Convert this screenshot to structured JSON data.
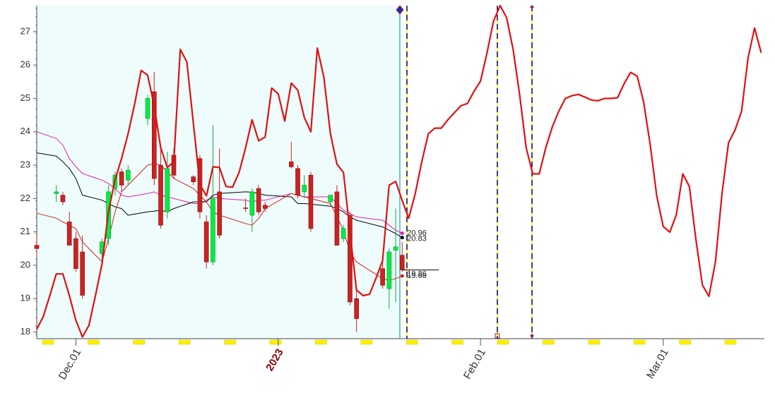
{
  "chart_data": {
    "type": "candlestick",
    "x": [
      -6,
      -3,
      -2,
      -1,
      0,
      1,
      4,
      5,
      6,
      7,
      8,
      11,
      12,
      13,
      14,
      15,
      18,
      19,
      20,
      21,
      22,
      26,
      27,
      28,
      29,
      33,
      34,
      35,
      36,
      39,
      40,
      41,
      42,
      43,
      47,
      48,
      49,
      50
    ],
    "open": [
      20.6,
      22.15,
      22.1,
      21.3,
      20.8,
      20.4,
      20.35,
      20.8,
      22.3,
      22.8,
      22.55,
      24.4,
      25.2,
      23.0,
      21.6,
      23.3,
      22.65,
      23.2,
      21.3,
      20.1,
      22.2,
      21.72,
      21.5,
      22.3,
      21.8,
      23.1,
      22.9,
      22.2,
      22.7,
      21.9,
      22.2,
      20.8,
      21.5,
      19.0,
      19.9,
      19.3,
      20.45,
      20.3
    ],
    "high": [
      20.9,
      22.4,
      22.2,
      21.6,
      21.0,
      20.9,
      20.8,
      22.4,
      22.8,
      22.9,
      23.0,
      25.1,
      25.8,
      23.6,
      23.4,
      23.5,
      22.7,
      23.3,
      21.5,
      24.2,
      23.5,
      22.0,
      22.3,
      22.4,
      21.9,
      23.7,
      23.0,
      22.7,
      22.8,
      22.1,
      22.4,
      21.2,
      21.6,
      19.3,
      20.1,
      20.5,
      21.7,
      20.7
    ],
    "low": [
      20.3,
      21.9,
      21.8,
      20.6,
      19.8,
      19.0,
      20.1,
      20.6,
      22.1,
      22.2,
      22.4,
      24.2,
      22.4,
      21.1,
      21.4,
      22.6,
      22.4,
      21.4,
      19.9,
      20.0,
      20.8,
      21.6,
      21.0,
      21.5,
      21.6,
      22.9,
      22.0,
      22.0,
      21.0,
      21.8,
      20.6,
      20.7,
      18.8,
      18.0,
      19.3,
      18.7,
      18.9,
      19.8
    ],
    "close": [
      20.5,
      22.2,
      21.9,
      20.6,
      19.9,
      19.1,
      20.7,
      22.2,
      22.7,
      22.4,
      22.85,
      25.0,
      22.6,
      21.2,
      22.9,
      22.7,
      22.5,
      21.6,
      20.1,
      22.0,
      20.9,
      21.7,
      22.2,
      21.6,
      21.7,
      22.95,
      22.1,
      22.4,
      21.1,
      22.1,
      20.6,
      21.1,
      18.9,
      18.4,
      19.4,
      20.4,
      20.55,
      19.86
    ],
    "up_color": "#00ee44",
    "down_color": "#cc2222",
    "series": [
      {
        "color": "#e020b0",
        "values": [
          24.0,
          23.8,
          23.6,
          23.2,
          22.95,
          22.75,
          22.55,
          22.45,
          22.3,
          22.1,
          22.05,
          22.15,
          22.2,
          22.1,
          22.05,
          22.0,
          21.85,
          21.85,
          21.95,
          22.05,
          22.0,
          21.95,
          21.9,
          21.95,
          21.95,
          22.15,
          22.1,
          22.05,
          22.05,
          22.05,
          21.85,
          21.65,
          21.55,
          21.45,
          21.35,
          21.2,
          21.05,
          20.96
        ]
      },
      {
        "color": "#000000",
        "values": [
          23.37,
          23.27,
          23.1,
          22.9,
          22.6,
          22.1,
          21.95,
          21.85,
          21.75,
          21.7,
          21.5,
          21.6,
          21.62,
          21.65,
          21.6,
          21.7,
          21.9,
          21.9,
          21.9,
          22.1,
          22.15,
          22.2,
          22.19,
          22.15,
          22.1,
          22.05,
          21.85,
          21.85,
          21.83,
          21.77,
          21.7,
          21.6,
          21.45,
          21.35,
          21.15,
          21.05,
          20.95,
          20.83
        ]
      },
      {
        "color": "#d02020",
        "values": [
          21.56,
          21.41,
          21.3,
          21.2,
          21.1,
          20.7,
          20.1,
          20.8,
          21.6,
          22.2,
          22.4,
          23.0,
          23.05,
          23.0,
          22.8,
          22.6,
          22.3,
          22.1,
          21.9,
          21.6,
          21.5,
          21.25,
          21.2,
          21.4,
          21.7,
          22.15,
          22.1,
          22.05,
          22.0,
          21.85,
          21.45,
          21.05,
          20.4,
          20.1,
          19.6,
          19.55,
          19.6,
          19.68
        ]
      }
    ],
    "overlay": {
      "type": "line",
      "color": "#e01010",
      "x": [
        -6,
        -5,
        -4,
        -3,
        -2,
        -1,
        0,
        1,
        2,
        3,
        4,
        5,
        6,
        7,
        8,
        9,
        10,
        11,
        12,
        13,
        14,
        15,
        16,
        17,
        18,
        19,
        20,
        21,
        22,
        23,
        24,
        25,
        26,
        27,
        28,
        29,
        30,
        31,
        32,
        33,
        34,
        35,
        36,
        37,
        38,
        39,
        40,
        41,
        42,
        43,
        44,
        45,
        46,
        47,
        48,
        49,
        50,
        51,
        52,
        53,
        54,
        55,
        56,
        57,
        58,
        59,
        60,
        61,
        62,
        63,
        64,
        65,
        66,
        67,
        68,
        69,
        70,
        71,
        72,
        73,
        74,
        75,
        76,
        77,
        78,
        79,
        80,
        81,
        82,
        83,
        84,
        85,
        86,
        87,
        88,
        89,
        90,
        91,
        92,
        93,
        94,
        95,
        96,
        97,
        98,
        99,
        100,
        101,
        102,
        103,
        104,
        105
      ],
      "values": [
        18.08,
        18.46,
        19.09,
        19.74,
        19.74,
        19.09,
        18.35,
        17.85,
        18.2,
        19.09,
        20.04,
        21.62,
        22.57,
        23.2,
        23.94,
        24.83,
        25.84,
        25.69,
        24.78,
        23.52,
        22.93,
        23.1,
        26.47,
        26.09,
        24.26,
        22.42,
        22.08,
        22.95,
        22.93,
        22.36,
        22.34,
        22.78,
        23.52,
        24.36,
        23.73,
        23.84,
        25.31,
        25.14,
        24.32,
        25.46,
        25.25,
        24.43,
        24.0,
        26.51,
        25.63,
        23.94,
        23.03,
        22.78,
        20.99,
        19.26,
        19.09,
        19.13,
        19.62,
        20.14,
        22.4,
        22.51,
        21.94,
        21.41,
        22.15,
        23.1,
        23.94,
        24.11,
        24.11,
        24.36,
        24.57,
        24.78,
        24.85,
        25.21,
        25.52,
        26.37,
        27.32,
        27.78,
        27.42,
        26.47,
        25.1,
        23.52,
        22.74,
        22.74,
        23.52,
        24.15,
        24.62,
        25.0,
        25.08,
        25.12,
        25.04,
        24.95,
        24.93,
        25.0,
        25.0,
        25.02,
        25.44,
        25.78,
        25.67,
        24.89,
        23.62,
        22.08,
        21.16,
        20.99,
        21.51,
        22.74,
        22.36,
        20.78,
        19.41,
        19.07,
        20.1,
        22.15,
        23.67,
        24.05,
        24.62,
        26.22,
        27.11,
        26.37
      ]
    },
    "xlim": [
      -6,
      105.5
    ],
    "ylim": [
      17.8,
      27.78
    ],
    "yticks": [
      18,
      19,
      20,
      21,
      22,
      23,
      24,
      25,
      26,
      27
    ],
    "xticks": [
      {
        "value": 0,
        "label": "Dec.01"
      },
      {
        "value": 31,
        "label": "2023"
      },
      {
        "value": 62,
        "label": "Feb.01"
      },
      {
        "value": 90,
        "label": "Mar.01"
      }
    ]
  }
}
